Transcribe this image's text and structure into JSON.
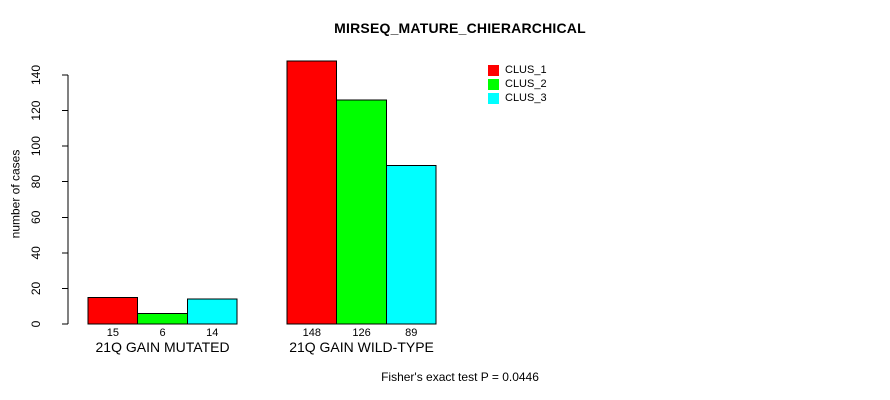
{
  "chart_data": {
    "type": "bar",
    "title": "MIRSEQ_MATURE_CHIERARCHICAL",
    "ylabel": "number of cases",
    "xlabel": "",
    "categories": [
      "21Q GAIN MUTATED",
      "21Q GAIN WILD-TYPE"
    ],
    "series": [
      {
        "name": "CLUS_1",
        "color": "#ff0000",
        "values": [
          15,
          148
        ]
      },
      {
        "name": "CLUS_2",
        "color": "#00ff00",
        "values": [
          6,
          126
        ]
      },
      {
        "name": "CLUS_3",
        "color": "#00ffff",
        "values": [
          14,
          89
        ]
      }
    ],
    "yticks": [
      0,
      20,
      40,
      60,
      80,
      100,
      120,
      140
    ],
    "ylim": [
      0,
      148
    ],
    "show_bar_values": true,
    "bar_value_labels": [
      [
        15,
        6,
        14
      ],
      [
        148,
        126,
        89
      ]
    ],
    "annotation": "Fisher's exact test P = 0.0446",
    "legend_position": "top-right",
    "grid": false,
    "background_color": "#ffffff",
    "axis_color": "#000000",
    "bar_border_color": "#000000"
  }
}
